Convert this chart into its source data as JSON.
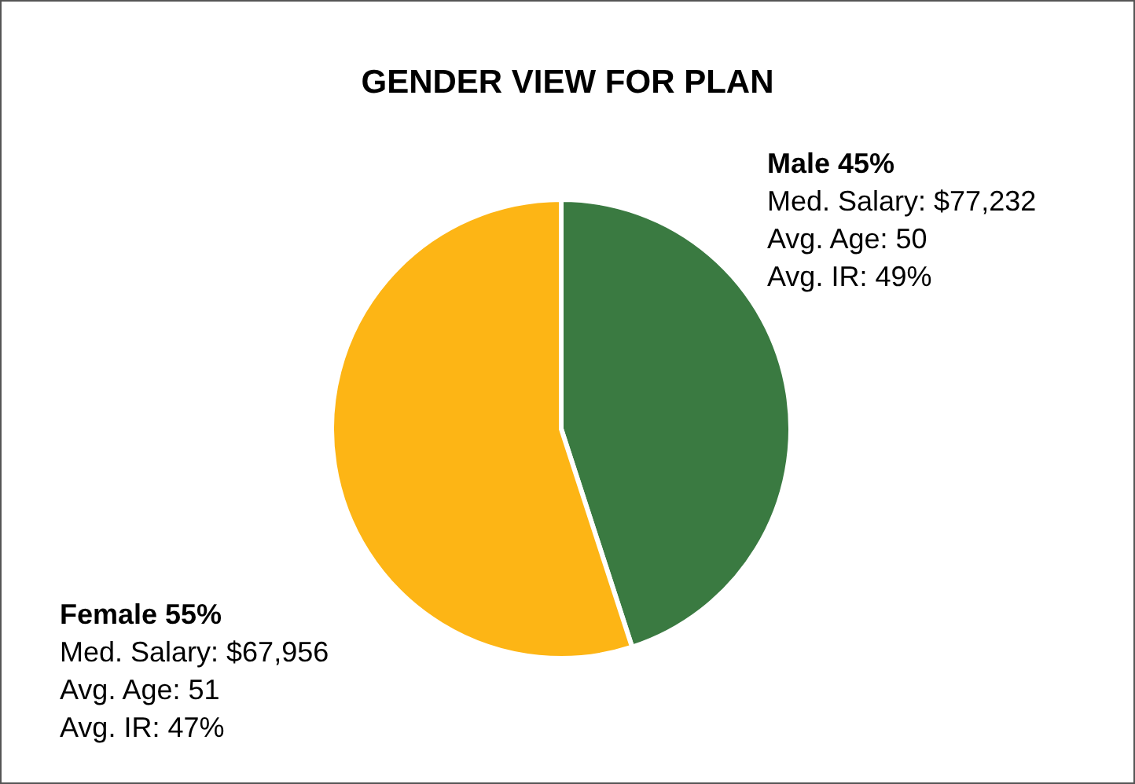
{
  "chart_data": {
    "type": "pie",
    "title": "GENDER VIEW FOR PLAN",
    "categories": [
      "Male",
      "Female"
    ],
    "values": [
      45,
      55
    ],
    "value_labels": [
      "45%",
      "55%"
    ],
    "colors": [
      "#3a7a41",
      "#fdb515"
    ],
    "annotations": [
      "Med. Salary: $77,232\nAvg. Age: 50\nAvg. IR: 49%",
      "Med. Salary: $67,956\nAvg. Age: 51\nAvg. IR: 47%"
    ],
    "legend": false
  }
}
